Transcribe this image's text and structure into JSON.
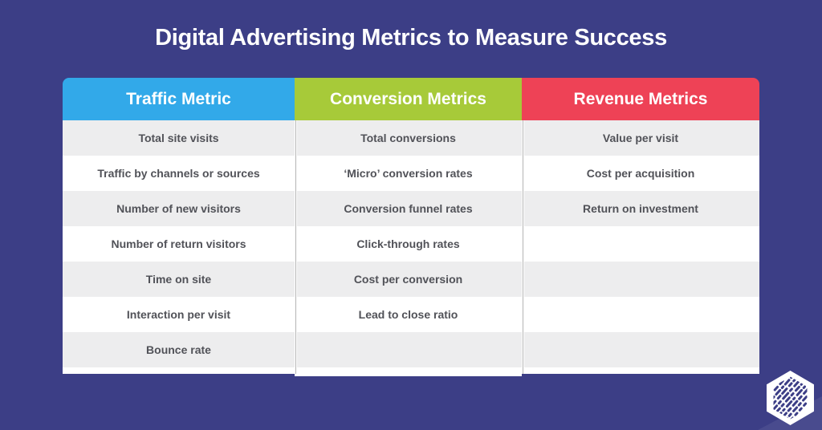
{
  "page": {
    "title": "Digital Advertising Metrics to Measure Success",
    "background_color": "#3C3E86",
    "title_color": "#FFFFFF"
  },
  "table": {
    "columns": [
      {
        "header": "Traffic Metric",
        "header_color": "#32A9E9",
        "items": [
          "Total site visits",
          "Traffic by channels or sources",
          "Number of new visitors",
          "Number of return visitors",
          "Time on site",
          "Interaction per visit",
          "Bounce rate"
        ]
      },
      {
        "header": "Conversion Metrics",
        "header_color": "#A7CA39",
        "items": [
          "Total conversions",
          "‘Micro’ conversion rates",
          "Conversion funnel rates",
          "Click-through rates",
          "Cost per conversion",
          "Lead to close ratio",
          ""
        ]
      },
      {
        "header": "Revenue Metrics",
        "header_color": "#EE4256",
        "items": [
          "Value per visit",
          "Cost per acquisition",
          "Return on investment",
          "",
          "",
          "",
          ""
        ]
      }
    ],
    "row_colors": {
      "odd": "#EDEDEE",
      "even": "#FFFFFF"
    },
    "cell_text_color": "#515258",
    "separator_color": "#B4B4B4"
  },
  "logo": {
    "icon": "hexagon-dashed-logo-icon",
    "fill_color": "#FFFFFF",
    "stripe_color": "#3C3E86"
  }
}
